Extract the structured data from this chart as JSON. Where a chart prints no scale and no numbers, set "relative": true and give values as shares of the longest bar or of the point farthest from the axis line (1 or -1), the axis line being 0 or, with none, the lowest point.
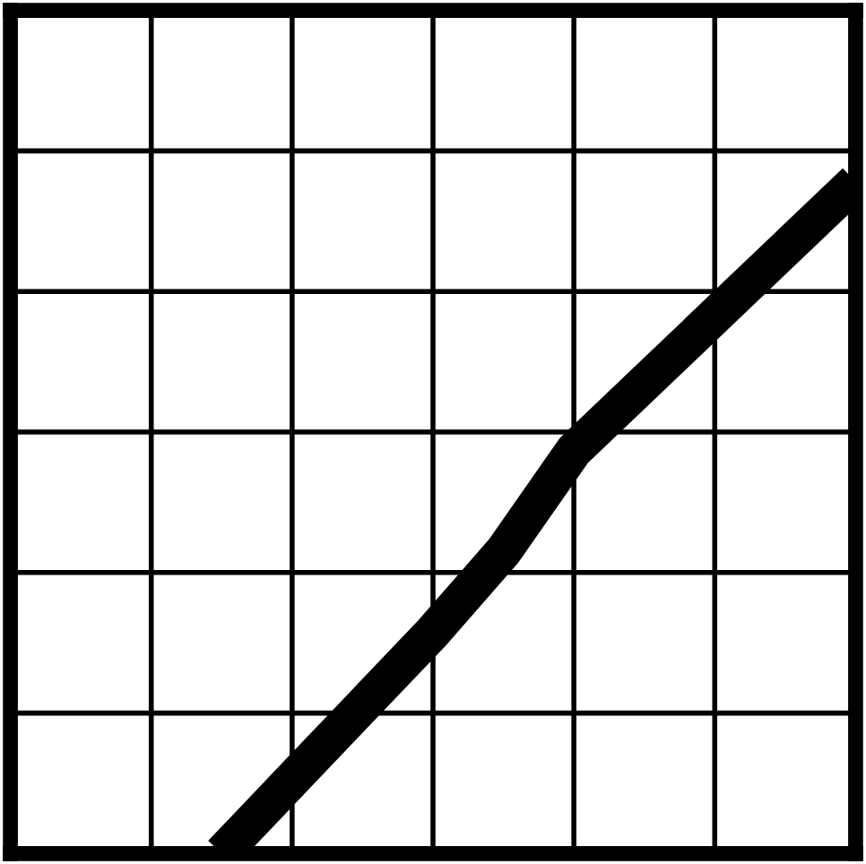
{
  "chart_data": {
    "type": "line",
    "relative": true,
    "grid": true,
    "tick_labels": false,
    "line_style": "solid",
    "categories": [
      null,
      null,
      null,
      null,
      null,
      null,
      null,
      null,
      null,
      null,
      null,
      null,
      null
    ],
    "series": [
      {
        "color": "#000000",
        "values": [
          null,
          null,
          null,
          0,
          0.11,
          0.22,
          0.33,
          0.45,
          0.6,
          0.7,
          0.8,
          0.9,
          1.0
        ]
      }
    ]
  }
}
